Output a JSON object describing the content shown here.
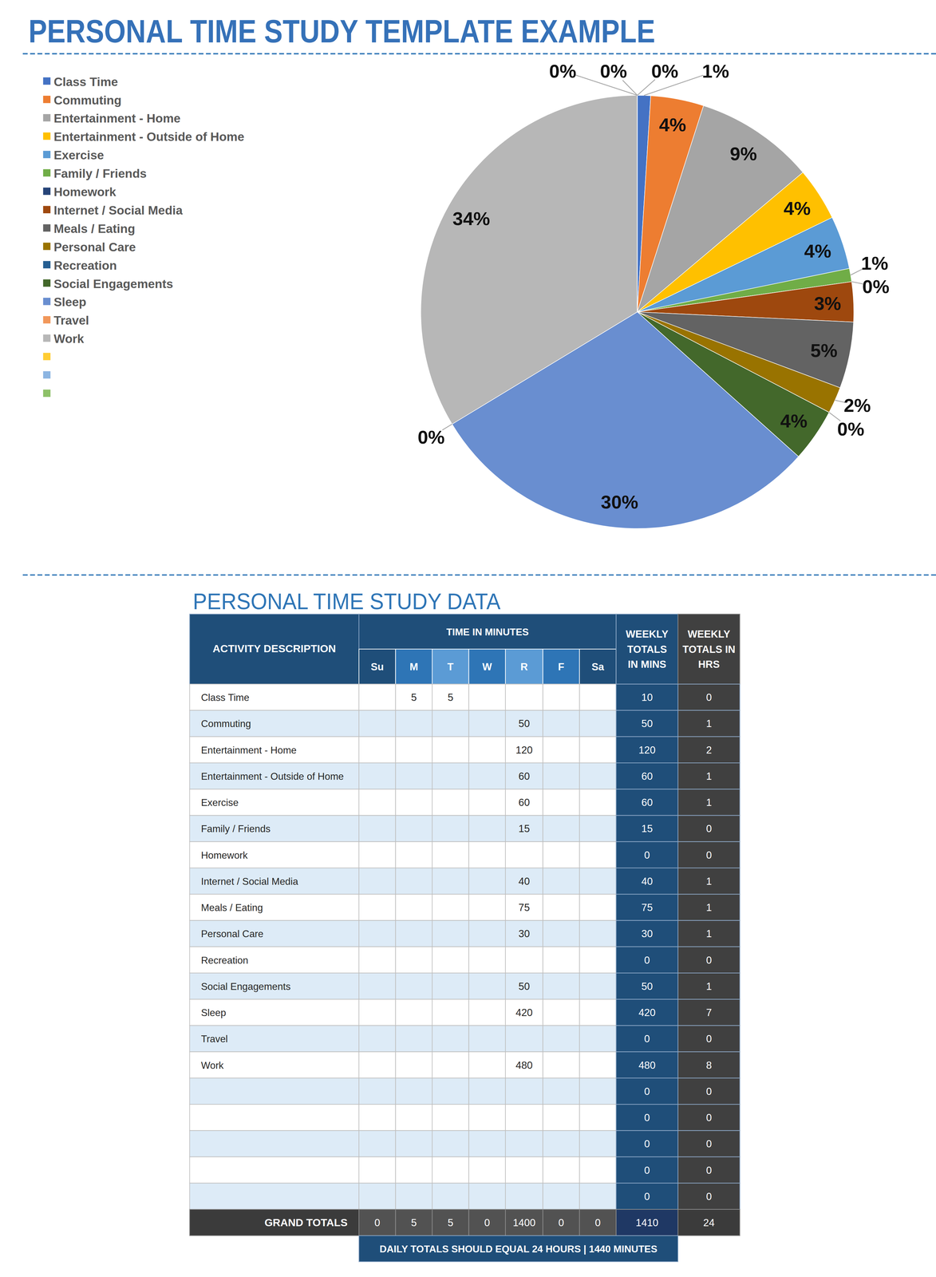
{
  "title": "PERSONAL TIME STUDY TEMPLATE EXAMPLE",
  "chart_data": {
    "type": "pie",
    "categories": [
      "Class Time",
      "Commuting",
      "Entertainment - Home",
      "Entertainment - Outside of Home",
      "Exercise",
      "Family / Friends",
      "Homework",
      "Internet / Social Media",
      "Meals / Eating",
      "Personal Care",
      "Recreation",
      "Social Engagements",
      "Sleep",
      "Travel",
      "Work",
      null,
      null,
      null
    ],
    "values": [
      1,
      4,
      9,
      4,
      4,
      1,
      0,
      3,
      5,
      2,
      0,
      4,
      30,
      0,
      34,
      0,
      0,
      0
    ],
    "value_labels": [
      "1%",
      "4%",
      "9%",
      "4%",
      "4%",
      "1%",
      "0%",
      "3%",
      "5%",
      "2%",
      "0%",
      "4%",
      "30%",
      "0%",
      "34%",
      "0%",
      "0%",
      "0%"
    ],
    "colors": [
      "#4472c4",
      "#ed7d31",
      "#a5a5a5",
      "#ffc000",
      "#5b9bd5",
      "#70ad47",
      "#264478",
      "#9e480e",
      "#636363",
      "#997300",
      "#255e91",
      "#43682b",
      "#698ed0",
      "#f1975a",
      "#b7b7b7",
      "#ffcd33",
      "#8cb5e2",
      "#8dc168"
    ],
    "data_labels": true,
    "legend": "left"
  },
  "table": {
    "title": "PERSONAL TIME STUDY DATA",
    "header": {
      "activity": "ACTIVITY DESCRIPTION",
      "time": "TIME IN MINUTES",
      "days": [
        "Su",
        "M",
        "T",
        "W",
        "R",
        "F",
        "Sa"
      ],
      "weekly_mins": [
        "WEEKLY",
        "TOTALS",
        "IN MINS"
      ],
      "weekly_hrs": [
        "WEEKLY",
        "TOTALS IN",
        "HRS"
      ]
    },
    "rows": [
      [
        "Class Time",
        null,
        5,
        5,
        null,
        null,
        null,
        null,
        10,
        0
      ],
      [
        "Commuting",
        null,
        null,
        null,
        null,
        50,
        null,
        null,
        50,
        1
      ],
      [
        "Entertainment - Home",
        null,
        null,
        null,
        null,
        120,
        null,
        null,
        120,
        2
      ],
      [
        "Entertainment - Outside of Home",
        null,
        null,
        null,
        null,
        60,
        null,
        null,
        60,
        1
      ],
      [
        "Exercise",
        null,
        null,
        null,
        null,
        60,
        null,
        null,
        60,
        1
      ],
      [
        "Family / Friends",
        null,
        null,
        null,
        null,
        15,
        null,
        null,
        15,
        0
      ],
      [
        "Homework",
        null,
        null,
        null,
        null,
        null,
        null,
        null,
        0,
        0
      ],
      [
        "Internet / Social Media",
        null,
        null,
        null,
        null,
        40,
        null,
        null,
        40,
        1
      ],
      [
        "Meals / Eating",
        null,
        null,
        null,
        null,
        75,
        null,
        null,
        75,
        1
      ],
      [
        "Personal Care",
        null,
        null,
        null,
        null,
        30,
        null,
        null,
        30,
        1
      ],
      [
        "Recreation",
        null,
        null,
        null,
        null,
        null,
        null,
        null,
        0,
        0
      ],
      [
        "Social Engagements",
        null,
        null,
        null,
        null,
        50,
        null,
        null,
        50,
        1
      ],
      [
        "Sleep",
        null,
        null,
        null,
        null,
        420,
        null,
        null,
        420,
        7
      ],
      [
        "Travel",
        null,
        null,
        null,
        null,
        null,
        null,
        null,
        0,
        0
      ],
      [
        "Work",
        null,
        null,
        null,
        null,
        480,
        null,
        null,
        480,
        8
      ],
      [
        null,
        null,
        null,
        null,
        null,
        null,
        null,
        null,
        0,
        0
      ],
      [
        null,
        null,
        null,
        null,
        null,
        null,
        null,
        null,
        0,
        0
      ],
      [
        null,
        null,
        null,
        null,
        null,
        null,
        null,
        null,
        0,
        0
      ],
      [
        null,
        null,
        null,
        null,
        null,
        null,
        null,
        null,
        0,
        0
      ],
      [
        null,
        null,
        null,
        null,
        null,
        null,
        null,
        null,
        0,
        0
      ]
    ],
    "totals": [
      "GRAND TOTALS",
      0,
      5,
      5,
      0,
      1400,
      0,
      0,
      1410,
      24
    ],
    "note": "DAILY TOTALS SHOULD EQUAL 24 HOURS  |  1440 MINUTES"
  }
}
